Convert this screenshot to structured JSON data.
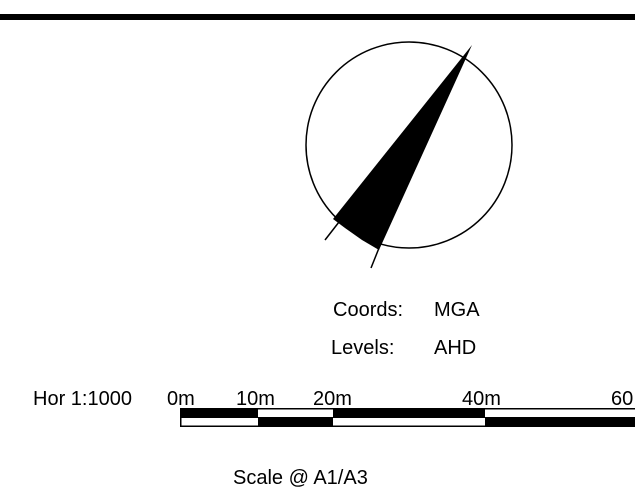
{
  "legend": {
    "coords_label": "Coords:",
    "coords_value": "MGA",
    "levels_label": "Levels:",
    "levels_value": "AHD"
  },
  "scale": {
    "prefix": "Hor 1:1000",
    "ticks": [
      "0m",
      "10m",
      "20m",
      "40m",
      "60"
    ],
    "footnote": "Scale @ A1/A3"
  },
  "colors": {
    "ink": "#000000",
    "paper": "#ffffff"
  }
}
